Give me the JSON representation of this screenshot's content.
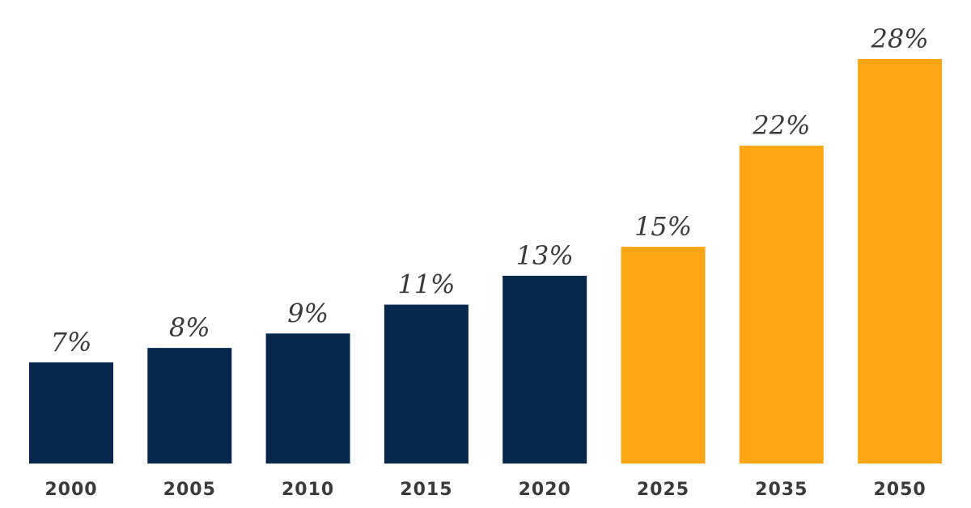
{
  "chart_data": {
    "type": "bar",
    "title": "",
    "xlabel": "",
    "ylabel": "",
    "categories": [
      "2000",
      "2005",
      "2010",
      "2015",
      "2020",
      "2025",
      "2035",
      "2050"
    ],
    "values": [
      7,
      8,
      9,
      11,
      13,
      15,
      22,
      28
    ],
    "value_labels": [
      "7%",
      "8%",
      "9%",
      "11%",
      "13%",
      "15%",
      "22%",
      "28%"
    ],
    "ylim": [
      0,
      28
    ],
    "grid": false,
    "legend": "none",
    "colors": {
      "historical": "#05284c",
      "projected": "#fca615"
    },
    "projected_from_index": 5
  }
}
